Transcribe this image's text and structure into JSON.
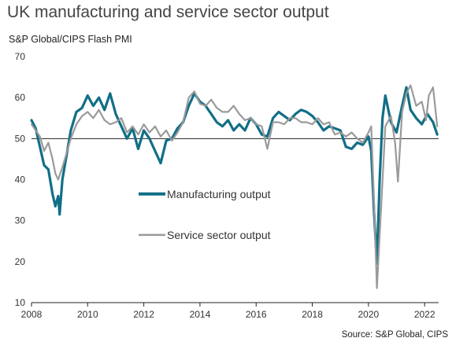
{
  "title": "UK manufacturing and service sector output",
  "subtitle": "S&P Global/CIPS Flash PMI",
  "source": "Source: S&P Global, CIPS",
  "chart_data": {
    "type": "line",
    "title": "UK manufacturing and service sector output",
    "ylabel": "S&P Global/CIPS Flash PMI",
    "xlabel": "",
    "ylim": [
      10,
      70
    ],
    "xlim": [
      2008.0,
      2022.5
    ],
    "y_ticks": [
      10,
      20,
      30,
      40,
      50,
      60,
      70
    ],
    "x_ticks": [
      2008,
      2010,
      2012,
      2014,
      2016,
      2018,
      2020,
      2022
    ],
    "reference_line": 50,
    "legend_placement": "center-left",
    "grid": false,
    "series": [
      {
        "name": "Manufacturing output",
        "color": "#116f86",
        "x": [
          2008.0,
          2008.15,
          2008.3,
          2008.45,
          2008.6,
          2008.75,
          2008.85,
          2008.95,
          2009.0,
          2009.1,
          2009.25,
          2009.4,
          2009.6,
          2009.8,
          2010.0,
          2010.2,
          2010.4,
          2010.6,
          2010.8,
          2011.0,
          2011.2,
          2011.4,
          2011.6,
          2011.8,
          2012.0,
          2012.2,
          2012.4,
          2012.6,
          2012.8,
          2013.0,
          2013.2,
          2013.4,
          2013.6,
          2013.8,
          2014.0,
          2014.2,
          2014.4,
          2014.6,
          2014.8,
          2015.0,
          2015.2,
          2015.4,
          2015.6,
          2015.8,
          2016.0,
          2016.2,
          2016.4,
          2016.6,
          2016.8,
          2017.0,
          2017.2,
          2017.4,
          2017.6,
          2017.8,
          2018.0,
          2018.2,
          2018.4,
          2018.6,
          2018.8,
          2019.0,
          2019.2,
          2019.4,
          2019.6,
          2019.8,
          2020.0,
          2020.1,
          2020.2,
          2020.3,
          2020.4,
          2020.5,
          2020.6,
          2020.8,
          2021.0,
          2021.2,
          2021.35,
          2021.5,
          2021.7,
          2021.9,
          2022.1,
          2022.3,
          2022.45
        ],
        "values": [
          54.5,
          52.5,
          48.0,
          43.5,
          42.5,
          36.5,
          33.5,
          36.0,
          31.5,
          40.0,
          46.0,
          52.0,
          56.5,
          57.5,
          60.5,
          58.0,
          60.0,
          57.0,
          61.0,
          56.0,
          53.0,
          50.0,
          52.5,
          47.5,
          52.0,
          50.0,
          47.0,
          44.0,
          49.5,
          50.0,
          52.5,
          54.0,
          58.0,
          61.0,
          59.0,
          58.0,
          56.0,
          54.0,
          53.0,
          54.5,
          52.0,
          53.5,
          52.0,
          55.0,
          53.5,
          51.0,
          50.5,
          55.0,
          56.5,
          55.5,
          54.5,
          56.0,
          57.0,
          56.5,
          55.5,
          54.0,
          52.0,
          53.0,
          52.5,
          52.0,
          48.0,
          47.5,
          49.0,
          48.5,
          50.5,
          47.0,
          32.0,
          19.5,
          40.0,
          55.0,
          60.5,
          54.0,
          51.5,
          58.0,
          62.5,
          57.0,
          55.0,
          53.5,
          56.0,
          54.0,
          51.0
        ]
      },
      {
        "name": "Service sector output",
        "color": "#9a9a9a",
        "x": [
          2008.0,
          2008.15,
          2008.3,
          2008.45,
          2008.6,
          2008.75,
          2008.85,
          2008.95,
          2009.1,
          2009.25,
          2009.4,
          2009.6,
          2009.8,
          2010.0,
          2010.2,
          2010.4,
          2010.6,
          2010.8,
          2011.0,
          2011.2,
          2011.4,
          2011.6,
          2011.8,
          2012.0,
          2012.2,
          2012.4,
          2012.6,
          2012.8,
          2013.0,
          2013.2,
          2013.4,
          2013.6,
          2013.8,
          2014.0,
          2014.2,
          2014.4,
          2014.6,
          2014.8,
          2015.0,
          2015.2,
          2015.4,
          2015.6,
          2015.8,
          2016.0,
          2016.2,
          2016.4,
          2016.6,
          2016.8,
          2017.0,
          2017.2,
          2017.4,
          2017.6,
          2017.8,
          2018.0,
          2018.2,
          2018.4,
          2018.6,
          2018.8,
          2019.0,
          2019.2,
          2019.4,
          2019.6,
          2019.8,
          2020.0,
          2020.1,
          2020.2,
          2020.3,
          2020.45,
          2020.6,
          2020.8,
          2020.95,
          2021.05,
          2021.2,
          2021.35,
          2021.5,
          2021.7,
          2021.9,
          2022.05,
          2022.15,
          2022.3,
          2022.45
        ],
        "values": [
          53.5,
          52.0,
          50.5,
          47.0,
          49.0,
          45.0,
          41.5,
          40.0,
          43.0,
          46.5,
          50.0,
          53.5,
          55.5,
          56.5,
          55.0,
          57.0,
          54.5,
          53.5,
          54.0,
          55.0,
          51.5,
          53.0,
          51.0,
          53.5,
          51.5,
          53.0,
          50.5,
          52.0,
          49.5,
          51.5,
          54.0,
          60.0,
          61.5,
          58.5,
          58.0,
          59.5,
          57.5,
          56.5,
          56.5,
          58.0,
          56.0,
          54.5,
          55.0,
          53.5,
          53.0,
          47.5,
          54.0,
          54.0,
          53.5,
          55.0,
          55.0,
          54.0,
          54.0,
          53.5,
          55.0,
          53.5,
          54.0,
          51.0,
          51.5,
          50.5,
          51.5,
          50.0,
          49.0,
          51.5,
          53.0,
          34.5,
          13.5,
          33.0,
          53.0,
          55.5,
          49.0,
          39.5,
          56.5,
          61.0,
          63.0,
          58.0,
          59.0,
          54.5,
          60.5,
          62.5,
          53.0
        ]
      }
    ]
  }
}
